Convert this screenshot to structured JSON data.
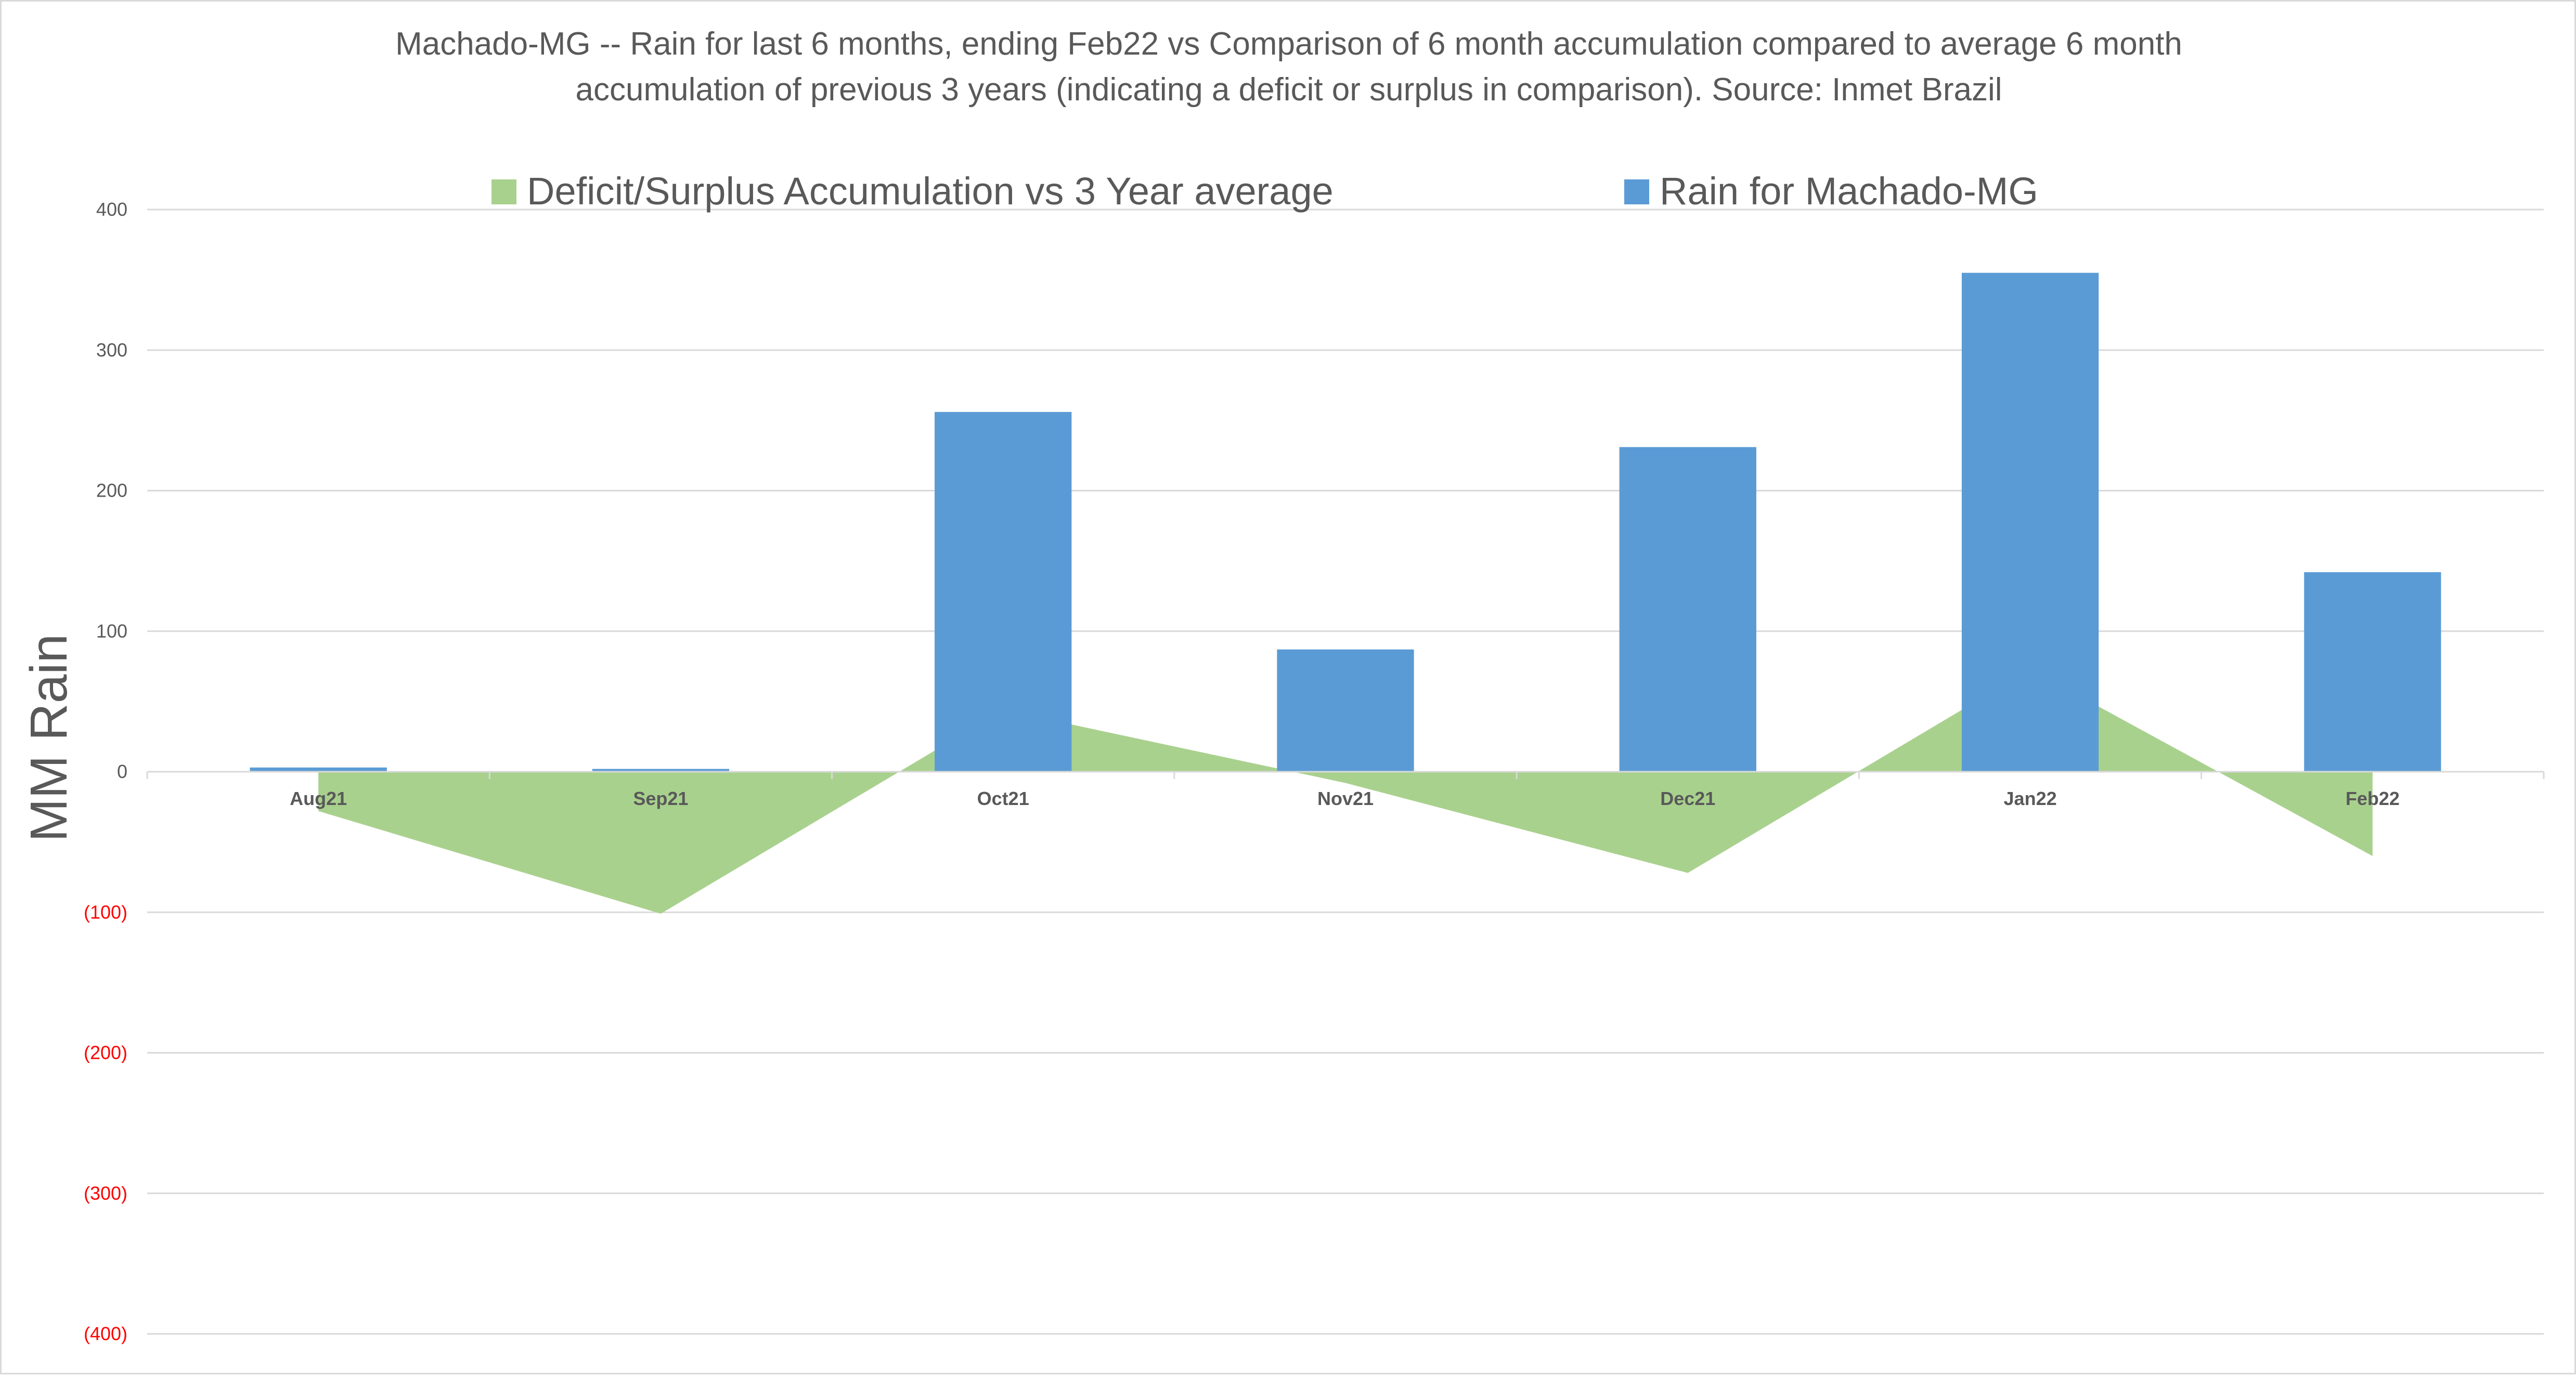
{
  "chart_data": {
    "type": "bar",
    "title_line1": "Machado-MG -- Rain for last 6 months, ending Feb22  vs Comparison of 6 month accumulation compared to average 6 month",
    "title_line2": "accumulation of previous 3 years  (indicating a deficit or surplus in comparison). Source: Inmet Brazil",
    "ylabel": "MM Rain",
    "xlabel": "",
    "ylim": [
      -400,
      400
    ],
    "y_ticks": [
      400,
      300,
      200,
      100,
      0,
      -100,
      -200,
      -300,
      -400
    ],
    "y_tick_labels": [
      "400",
      "300",
      "200",
      "100",
      "0",
      "(100)",
      "(200)",
      "(300)",
      "(400)"
    ],
    "negative_tick_color": "#ff0000",
    "grid": true,
    "legend_position": "top",
    "categories": [
      "Aug21",
      "Sep21",
      "Oct21",
      "Nov21",
      "Dec21",
      "Jan22",
      "Feb22"
    ],
    "series": [
      {
        "name": "Deficit/Surplus Accumulation vs 3 Year average",
        "type": "area",
        "color": "#a9d18e",
        "values": [
          -28,
          -101,
          44,
          -8,
          -72,
          73,
          -60
        ]
      },
      {
        "name": "Rain for Machado-MG",
        "type": "bar",
        "color": "#5b9bd5",
        "values": [
          3,
          2,
          256,
          87,
          231,
          355,
          142
        ]
      }
    ]
  }
}
